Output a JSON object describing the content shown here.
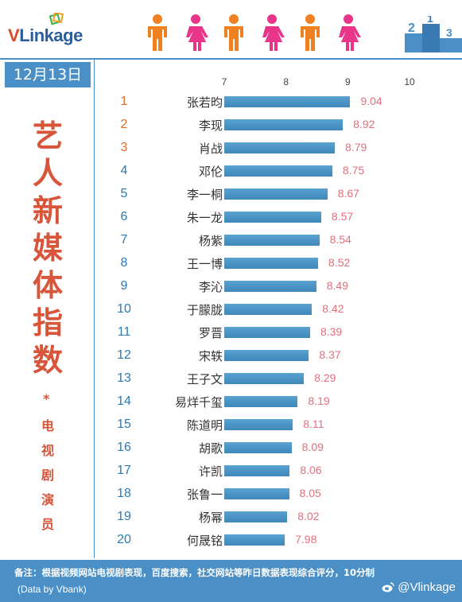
{
  "brand": {
    "logo_v": "V",
    "logo_rest": "Linkage"
  },
  "podium_numbers": [
    "2",
    "1",
    "3"
  ],
  "date": "12月13日",
  "title_chars": [
    "艺",
    "人",
    "新",
    "媒",
    "体",
    "指",
    "数"
  ],
  "title_star": "*",
  "subtitle_chars": [
    "电",
    "视",
    "剧",
    "演",
    "员"
  ],
  "colors": {
    "accent": "#4a8fc5",
    "title_red": "#d8553a",
    "bar": "#4a90c2",
    "value_pink": "#e0707c",
    "rank_orange": "#e06a2a",
    "rank_blue": "#2a7ab5",
    "person_orange": "#f08020",
    "person_pink": "#e8358a"
  },
  "chart_data": {
    "type": "bar",
    "orientation": "horizontal",
    "x_ticks": [
      "7",
      "8",
      "9",
      "10"
    ],
    "xlim": [
      7,
      10
    ],
    "rows": [
      {
        "rank": "1",
        "name": "张若昀",
        "value": 9.04,
        "label": "9.04"
      },
      {
        "rank": "2",
        "name": "李现",
        "value": 8.92,
        "label": "8.92"
      },
      {
        "rank": "3",
        "name": "肖战",
        "value": 8.79,
        "label": "8.79"
      },
      {
        "rank": "4",
        "name": "邓伦",
        "value": 8.75,
        "label": "8.75"
      },
      {
        "rank": "5",
        "name": "李一桐",
        "value": 8.67,
        "label": "8.67"
      },
      {
        "rank": "6",
        "name": "朱一龙",
        "value": 8.57,
        "label": "8.57"
      },
      {
        "rank": "7",
        "name": "杨紫",
        "value": 8.54,
        "label": "8.54"
      },
      {
        "rank": "8",
        "name": "王一博",
        "value": 8.52,
        "label": "8.52"
      },
      {
        "rank": "9",
        "name": "李沁",
        "value": 8.49,
        "label": "8.49"
      },
      {
        "rank": "10",
        "name": "于朦胧",
        "value": 8.42,
        "label": "8.42"
      },
      {
        "rank": "11",
        "name": "罗晋",
        "value": 8.39,
        "label": "8.39"
      },
      {
        "rank": "12",
        "name": "宋轶",
        "value": 8.37,
        "label": "8.37"
      },
      {
        "rank": "13",
        "name": "王子文",
        "value": 8.29,
        "label": "8.29"
      },
      {
        "rank": "14",
        "name": "易烊千玺",
        "value": 8.19,
        "label": "8.19"
      },
      {
        "rank": "15",
        "name": "陈道明",
        "value": 8.11,
        "label": "8.11"
      },
      {
        "rank": "16",
        "name": "胡歌",
        "value": 8.09,
        "label": "8.09"
      },
      {
        "rank": "17",
        "name": "许凯",
        "value": 8.06,
        "label": "8.06"
      },
      {
        "rank": "18",
        "name": "张鲁一",
        "value": 8.05,
        "label": "8.05"
      },
      {
        "rank": "19",
        "name": "杨幂",
        "value": 8.02,
        "label": "8.02"
      },
      {
        "rank": "20",
        "name": "何晟铭",
        "value": 7.98,
        "label": "7.98"
      }
    ]
  },
  "footer": {
    "note": "备注：根据视频网站电视剧表现，百度搜索，社交网站等昨日数据表现综合评分，10分制",
    "source": "(Data by Vbank)",
    "weibo_handle": "@Vlinkage"
  }
}
